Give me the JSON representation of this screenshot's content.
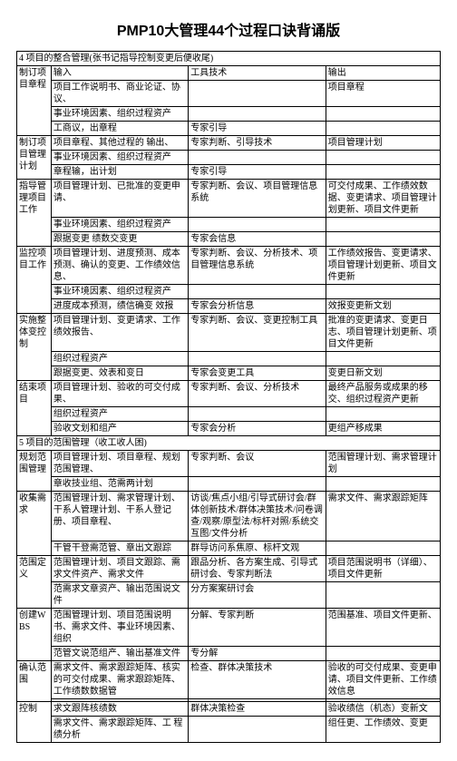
{
  "title": "PMP10大管理44个过程口诀背诵版",
  "sections": [
    {
      "header": "4 项目的整合管理(张书记指导控制变更后便收尾)",
      "blocks": [
        {
          "label": "制订项目章程",
          "rows": [
            [
              "输入",
              "工具技术",
              "输出"
            ],
            [
              "项目工作说明书、商业论证、协议、",
              "",
              "项目章程"
            ],
            [
              "事业环境因素、组织过程资产",
              "",
              ""
            ],
            [
              "工商议，出章程",
              "专家引导",
              ""
            ]
          ]
        },
        {
          "label": "制订项目管理计划",
          "rows": [
            [
              "项目章程、其他过程的 输出、",
              "专家判断、引导技术",
              "项目管理计划"
            ],
            [
              "事业环境因素、组织过程资产",
              "",
              ""
            ],
            [
              "章程输，出计划",
              "专家引导",
              ""
            ]
          ]
        },
        {
          "label": "指导管理项目工作",
          "rows": [
            [
              "项目管理计划、已批准的变更申请、",
              "专家判断、会议、项目管理信息系统",
              "可交付成果、工作绩效数据、变更请求、项目管理计划更新、项目文件更新"
            ],
            [
              "事业环境因素、组织过程资产",
              "",
              ""
            ],
            [
              "跟据变更  绩数交变更",
              "专家会信息",
              ""
            ]
          ]
        },
        {
          "label": "监控项目工作",
          "rows": [
            [
              "项目管理计划、进度预测、成本预测、确认的变更、工作绩效信息、",
              "专家判断、会议、分析技术、项目管理信息系统",
              "工作绩效报告、变更请求、项目管理计划更新、项目文件更新"
            ],
            [
              "事业环境因素、组织过程资产",
              "",
              ""
            ],
            [
              "进度成本预测，绩信确变  效报",
              "专家会分析信息",
              "效报变更新文划"
            ]
          ]
        },
        {
          "label": "实施整体变控制",
          "rows": [
            [
              "项目管理计划、变更请求、工作绩效报告、",
              "专家判断、会议、变更控制工具",
              "批准的变更请求、变更日志、项目管理计划更新、项目文件更新"
            ],
            [
              "组织过程资产",
              "",
              ""
            ],
            [
              "跟据变更、效表和变日",
              "专家会变更工具",
              "变更日新文划"
            ]
          ]
        },
        {
          "label": "结束项目",
          "rows": [
            [
              "项目管理计划、验收的可交付成果、",
              "专家判断、会议、分析技术",
              "最终产品服务或成果的移交、组织过程资产更新"
            ],
            [
              "组织过程资产",
              "",
              ""
            ],
            [
              "验收文划和组产",
              "专家会分析",
              "更组产移成果"
            ]
          ]
        }
      ]
    },
    {
      "header": "5 项目的范围管理（收工收人困)",
      "blocks": [
        {
          "label": "规划范围管理",
          "rows": [
            [
              "项目管理计划、项目章程、规划范围管理、",
              "专家判断、会议",
              "范围管理计划、需求管理计划"
            ],
            [
              "章收技业组、范需两计划",
              "",
              ""
            ]
          ]
        },
        {
          "label": "收集需求",
          "rows": [
            [
              "范围管理计划、需求管理计划、干系人管理计划、干系人登记册、项目章程、",
              "访谈/焦点小组/引导式研讨会/群体创新技术/群体决策技术/问卷调查/观察/原型法/标杆对照/系统交互图/文件分析",
              "需求文件、需求跟踪矩阵"
            ],
            [
              "干管干登需范管、章出文跟踪",
              "群导访问系焦原、标杆文观",
              ""
            ]
          ]
        },
        {
          "label": "范围定义",
          "rows": [
            [
              "范围管理计划、项目文跟踪、需求文件资产、需求文件",
              "跟品分析、各方案生成、引导式研讨会、专家判断法",
              "项目范围说明书（详细）、项目文件更新"
            ],
            [
              "范需求文章资产、输出范围说文件",
              "分方案案研讨会",
              ""
            ]
          ]
        },
        {
          "label": "创建WBS",
          "rows": [
            [
              "范围管理计划、项目范围说明书、需求文件、事业环境因素、组织",
              "分解、专家判断",
              "范围基准、项目文件更新、"
            ],
            [
              "范管文说范组产、输出基准文件",
              "专分解",
              ""
            ]
          ]
        },
        {
          "label": "确认范围",
          "rows": [
            [
              "需求文件、需求跟踪矩阵、核实的可交付成果、需求跟踪矩阵、工作绩数数据管",
              "检查、群体决策技术",
              "验收的可交付成果、变更申请、项目文件更新、工作绩效信息"
            ],
            [
              " ",
              " ",
              " "
            ]
          ]
        },
        {
          "label": "控制",
          "rows": [
            [
              "求文跟阵核绩数",
              "群体决策检查",
              "验收绩信（机态）变新文"
            ],
            [
              "需求文件、需求跟踪矩阵、工  程绩分析",
              "",
              "组任更、工作绩效、变更"
            ]
          ]
        }
      ]
    }
  ]
}
